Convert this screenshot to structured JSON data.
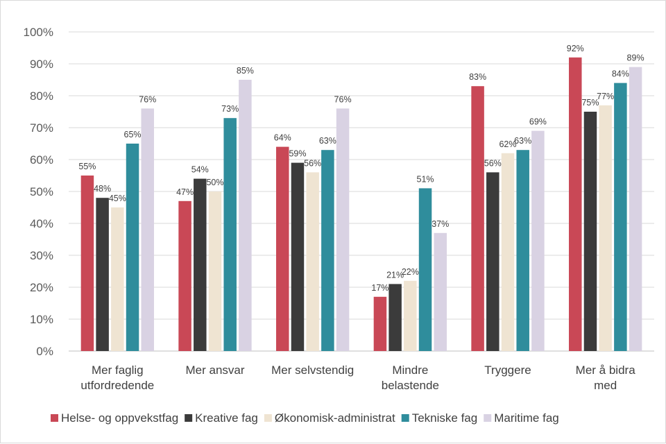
{
  "chart_data": {
    "type": "bar",
    "categories": [
      [
        "Mer faglig",
        "utfordredende"
      ],
      [
        "Mer ansvar"
      ],
      [
        "Mer selvstendig"
      ],
      [
        "Mindre",
        "belastende"
      ],
      [
        "Tryggere"
      ],
      [
        "Mer å bidra",
        "med"
      ]
    ],
    "series": [
      {
        "name": "Helse- og oppvekstfag",
        "color": "#c94856",
        "values": [
          55,
          47,
          64,
          17,
          83,
          92
        ],
        "labels": [
          "55%",
          "47%",
          "64%",
          "17%",
          "83%",
          "92%"
        ]
      },
      {
        "name": "Kreative fag",
        "color": "#3b3b3b",
        "values": [
          48,
          54,
          59,
          21,
          56,
          75
        ],
        "labels": [
          "48%",
          "54%",
          "59%",
          "21%",
          "56%",
          "75%"
        ]
      },
      {
        "name": "Økonomisk-administrat",
        "color": "#efe4d2",
        "values": [
          45,
          50,
          56,
          22,
          62,
          77
        ],
        "labels": [
          "45%",
          "50%",
          "56%",
          "22%",
          "62%",
          "77%"
        ]
      },
      {
        "name": "Tekniske fag",
        "color": "#2f8d9c",
        "values": [
          65,
          73,
          63,
          51,
          63,
          84
        ],
        "labels": [
          "65%",
          "73%",
          "63%",
          "51%",
          "63%",
          "84%"
        ]
      },
      {
        "name": "Maritime fag",
        "color": "#d9d2e3",
        "values": [
          76,
          85,
          76,
          37,
          69,
          89
        ],
        "labels": [
          "76%",
          "85%",
          "76%",
          "37%",
          "69%",
          "89%"
        ]
      }
    ],
    "ylim": [
      0,
      100
    ],
    "yticks": [
      "0%",
      "10%",
      "20%",
      "30%",
      "40%",
      "50%",
      "60%",
      "70%",
      "80%",
      "90%",
      "100%"
    ],
    "grid": true,
    "legend_position": "bottom"
  }
}
